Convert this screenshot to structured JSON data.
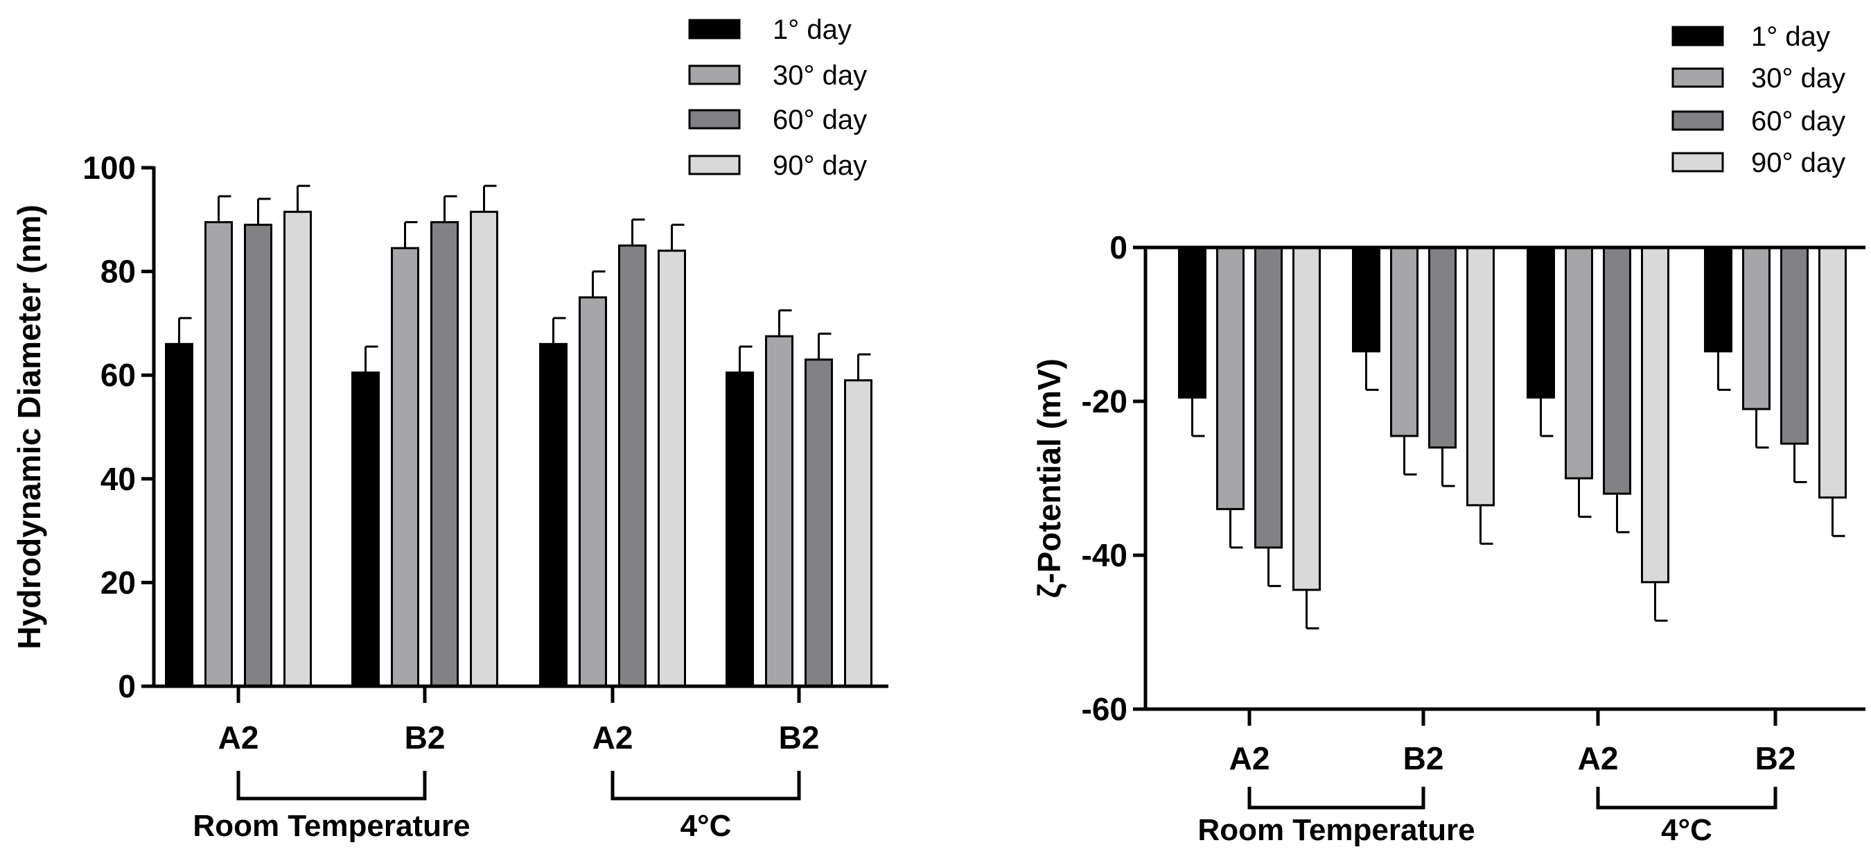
{
  "chart_data": [
    {
      "type": "bar",
      "ylabel": "Hydrodynamic Diameter (nm)",
      "xlabel": "",
      "ylim": [
        0,
        100
      ],
      "yticks": [
        "0",
        "20",
        "40",
        "60",
        "80",
        "100"
      ],
      "categories": [
        "A2",
        "B2",
        "A2",
        "B2"
      ],
      "groups": [
        {
          "label": "Room Temperature",
          "categories": [
            0,
            1
          ]
        },
        {
          "label": "4°C",
          "categories": [
            2,
            3
          ]
        }
      ],
      "legend": "top-right",
      "series": [
        {
          "name": "1° day",
          "color": "#000000",
          "values": [
            66,
            60.5,
            66,
            60.5
          ],
          "errors": [
            5,
            5,
            5,
            5
          ]
        },
        {
          "name": "30° day",
          "color": "#a6a6a8",
          "values": [
            89.5,
            84.5,
            75,
            67.5
          ],
          "errors": [
            5,
            5,
            5,
            5
          ]
        },
        {
          "name": "60° day",
          "color": "#828284",
          "values": [
            89,
            89.5,
            85,
            63
          ],
          "errors": [
            5,
            5,
            5,
            5
          ]
        },
        {
          "name": "90° day",
          "color": "#d9d9d9",
          "values": [
            91.5,
            91.5,
            84,
            59
          ],
          "errors": [
            5,
            5,
            5,
            5
          ]
        }
      ]
    },
    {
      "type": "bar",
      "ylabel": "ζ-Potential (mV)",
      "xlabel": "",
      "ylim": [
        -60,
        0
      ],
      "yticks": [
        "0",
        "-20",
        "-40",
        "-60"
      ],
      "categories": [
        "A2",
        "B2",
        "A2",
        "B2"
      ],
      "groups": [
        {
          "label": "Room Temperature",
          "categories": [
            0,
            1
          ]
        },
        {
          "label": "4°C",
          "categories": [
            2,
            3
          ]
        }
      ],
      "legend": "top-right",
      "series": [
        {
          "name": "1° day",
          "color": "#000000",
          "values": [
            -19.5,
            -13.5,
            -19.5,
            -13.5
          ],
          "errors": [
            5,
            5,
            5,
            5
          ]
        },
        {
          "name": "30° day",
          "color": "#a6a6a8",
          "values": [
            -34,
            -24.5,
            -30,
            -21
          ],
          "errors": [
            5,
            5,
            5,
            5
          ]
        },
        {
          "name": "60° day",
          "color": "#828284",
          "values": [
            -39,
            -26,
            -32,
            -25.5
          ],
          "errors": [
            5,
            5,
            5,
            5
          ]
        },
        {
          "name": "90° day",
          "color": "#d9d9d9",
          "values": [
            -44.5,
            -33.5,
            -43.5,
            -32.5
          ],
          "errors": [
            5,
            5,
            5,
            5
          ]
        }
      ]
    }
  ]
}
